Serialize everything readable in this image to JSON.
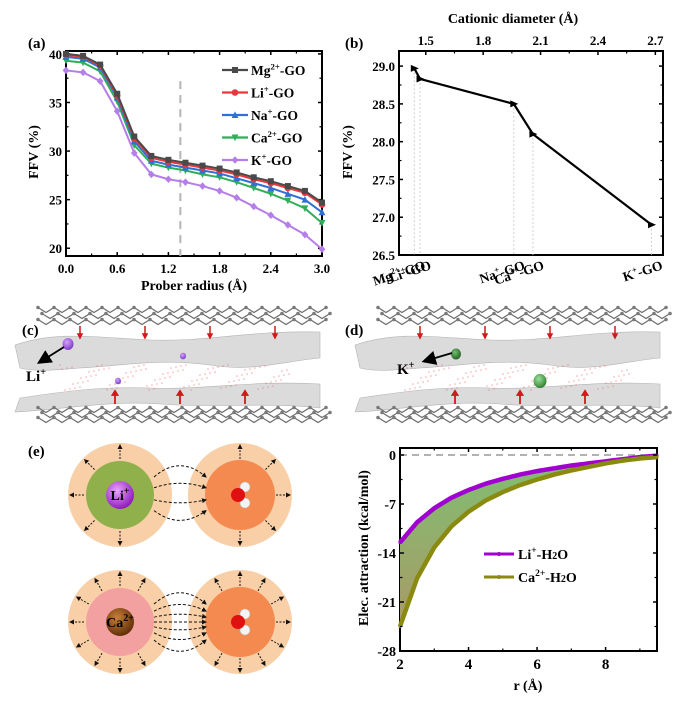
{
  "figure": {
    "panel_labels": [
      "(a)",
      "(b)",
      "(c)",
      "(d)",
      "(e)"
    ]
  },
  "chart_data": [
    {
      "id": "a",
      "type": "line",
      "title": "",
      "xlabel": "Prober radius (Å)",
      "ylabel": "FFV (%)",
      "xlim": [
        0.0,
        3.0
      ],
      "ylim": [
        19.2,
        40.3
      ],
      "xticks": [
        0.0,
        0.6,
        1.2,
        1.8,
        2.4,
        3.0
      ],
      "xtick_labels": [
        "0.0",
        "0.6",
        "1.2",
        "1.8",
        "2.4",
        "3.0"
      ],
      "yticks": [
        20,
        25,
        30,
        35,
        40
      ],
      "ytick_labels": [
        "20",
        "25",
        "30",
        "35",
        "40"
      ],
      "reference_line": {
        "x": 1.34,
        "style": "dashed",
        "color": "#b0b0b0"
      },
      "legend_position": "top-right",
      "x": [
        0.0,
        0.2,
        0.4,
        0.6,
        0.8,
        1.0,
        1.2,
        1.4,
        1.6,
        1.8,
        2.0,
        2.2,
        2.4,
        2.6,
        2.8,
        3.0
      ],
      "series": [
        {
          "name": "Mg²⁺-GO",
          "label_base": "Mg",
          "label_sup": "2+",
          "label_tail": "-GO",
          "color": "#4a4a4a",
          "marker": "square",
          "values": [
            40.0,
            39.8,
            38.9,
            35.9,
            31.5,
            29.5,
            29.1,
            28.8,
            28.5,
            28.2,
            27.8,
            27.3,
            26.9,
            26.4,
            25.9,
            24.7
          ]
        },
        {
          "name": "Li⁺-GO",
          "label_base": "Li",
          "label_sup": "+",
          "label_tail": "-GO",
          "color": "#e8383d",
          "marker": "circle",
          "values": [
            39.9,
            39.7,
            38.8,
            35.7,
            31.3,
            29.3,
            28.9,
            28.6,
            28.3,
            28.0,
            27.6,
            27.1,
            26.7,
            26.2,
            25.7,
            24.5
          ]
        },
        {
          "name": "Na⁺-GO",
          "label_base": "Na",
          "label_sup": "+",
          "label_tail": "-GO",
          "color": "#2f6fd6",
          "marker": "triangle-up",
          "values": [
            39.7,
            39.5,
            38.6,
            35.5,
            31.0,
            29.0,
            28.6,
            28.3,
            28.0,
            27.7,
            27.2,
            26.7,
            26.2,
            25.6,
            25.0,
            23.7
          ]
        },
        {
          "name": "Ca²⁺-GO",
          "label_base": "Ca",
          "label_sup": "2+",
          "label_tail": "-GO",
          "color": "#2fae5a",
          "marker": "triangle-down",
          "values": [
            39.3,
            39.1,
            38.2,
            35.1,
            30.6,
            28.7,
            28.3,
            28.0,
            27.6,
            27.3,
            26.8,
            26.2,
            25.6,
            24.9,
            24.1,
            22.6
          ]
        },
        {
          "name": "K⁺-GO",
          "label_base": "K",
          "label_sup": "+",
          "label_tail": "-GO",
          "color": "#b57ee8",
          "marker": "diamond",
          "values": [
            38.3,
            38.1,
            37.2,
            34.1,
            29.8,
            27.6,
            27.1,
            26.8,
            26.4,
            25.9,
            25.2,
            24.3,
            23.4,
            22.4,
            21.4,
            19.9
          ]
        }
      ]
    },
    {
      "id": "b",
      "type": "line",
      "title": "",
      "xlabel": "",
      "top_xlabel": "Cationic diameter (Å)",
      "ylabel": "FFV (%)",
      "xlim": [
        1.36,
        2.74
      ],
      "ylim": [
        26.5,
        29.2
      ],
      "top_xticks": [
        1.5,
        1.8,
        2.1,
        2.4,
        2.7
      ],
      "top_xtick_labels": [
        "1.5",
        "1.8",
        "2.1",
        "2.4",
        "2.7"
      ],
      "yticks": [
        26.5,
        27.0,
        27.5,
        28.0,
        28.5,
        29.0
      ],
      "ytick_labels": [
        "26.5",
        "27.0",
        "27.5",
        "28.0",
        "28.5",
        "29.0"
      ],
      "color": "#000000",
      "marker": "triangle-right",
      "points": [
        {
          "label": "Mg²⁺-GO",
          "base": "Mg",
          "sup": "2+",
          "tail": "-GO",
          "x": 1.44,
          "y": 28.97
        },
        {
          "label": "Li⁺-GO",
          "base": "Li",
          "sup": "+",
          "tail": "-GO",
          "x": 1.47,
          "y": 28.83
        },
        {
          "label": "Na⁺-GO",
          "base": "Na",
          "sup": "+",
          "tail": "-GO",
          "x": 1.96,
          "y": 28.5
        },
        {
          "label": "Ca²⁺-GO",
          "base": "Ca",
          "sup": "2+",
          "tail": "-GO",
          "x": 2.06,
          "y": 28.1
        },
        {
          "label": "K⁺-GO",
          "base": "K",
          "sup": "+",
          "tail": "-GO",
          "x": 2.68,
          "y": 26.9
        }
      ]
    },
    {
      "id": "f",
      "type": "area",
      "title": "",
      "xlabel": "r (Å)",
      "ylabel": "Elec. attraction (kcal/mol)",
      "xlim": [
        2,
        9.5
      ],
      "ylim": [
        -28,
        1
      ],
      "xticks": [
        2,
        4,
        6,
        8
      ],
      "xtick_labels": [
        "2",
        "4",
        "6",
        "8"
      ],
      "yticks": [
        0,
        -7,
        -14,
        -21,
        -28
      ],
      "ytick_labels": [
        "0",
        "-7",
        "-14",
        "-21",
        "-28"
      ],
      "zero_line": {
        "y": 0,
        "style": "dashed",
        "color": "#999999"
      },
      "fill_between": {
        "top_color": "#7fbf73",
        "bottom_color": "#a99a66"
      },
      "legend_position": "center-right",
      "x": [
        2.0,
        2.5,
        3.0,
        3.5,
        4.0,
        4.5,
        5.0,
        5.5,
        6.0,
        6.5,
        7.0,
        7.5,
        8.0,
        8.5,
        9.0,
        9.5
      ],
      "series": [
        {
          "name": "Li⁺-H₂O",
          "base": "Li",
          "sup": "+",
          "tail": "-H",
          "sub": "2",
          "tail2": "O",
          "color": "#a000d0",
          "values": [
            -12.5,
            -9.6,
            -7.6,
            -6.1,
            -5.0,
            -4.1,
            -3.4,
            -2.8,
            -2.3,
            -1.9,
            -1.5,
            -1.2,
            -0.9,
            -0.6,
            -0.3,
            -0.1
          ]
        },
        {
          "name": "Ca²⁺-H₂O",
          "base": "Ca",
          "sup": "2+",
          "tail": "-H",
          "sub": "2",
          "tail2": "O",
          "color": "#8a8a10",
          "values": [
            -24.5,
            -17.6,
            -13.2,
            -10.2,
            -8.1,
            -6.5,
            -5.3,
            -4.3,
            -3.5,
            -2.8,
            -2.2,
            -1.7,
            -1.2,
            -0.8,
            -0.5,
            -0.3
          ]
        }
      ]
    }
  ],
  "panel_c": {
    "ion_label": "Li",
    "ion_sup": "+",
    "ion_color": "#9a55d6"
  },
  "panel_d": {
    "ion_label": "K",
    "ion_sup": "+",
    "ion_color": "#3f9a3f"
  },
  "panel_e": {
    "rows": [
      {
        "ion_base": "Li",
        "ion_sup": "+",
        "ion_color": "#a326d6",
        "shell_color": "#8fb04a",
        "outer_color": "#f8cfa6",
        "water_core": "#f48a4f"
      },
      {
        "ion_base": "Ca",
        "ion_sup": "2+",
        "ion_color": "#8a4a12",
        "shell_color": "#f3a0a0",
        "outer_color": "#f8cfa6",
        "water_core": "#f48a4f"
      }
    ]
  }
}
